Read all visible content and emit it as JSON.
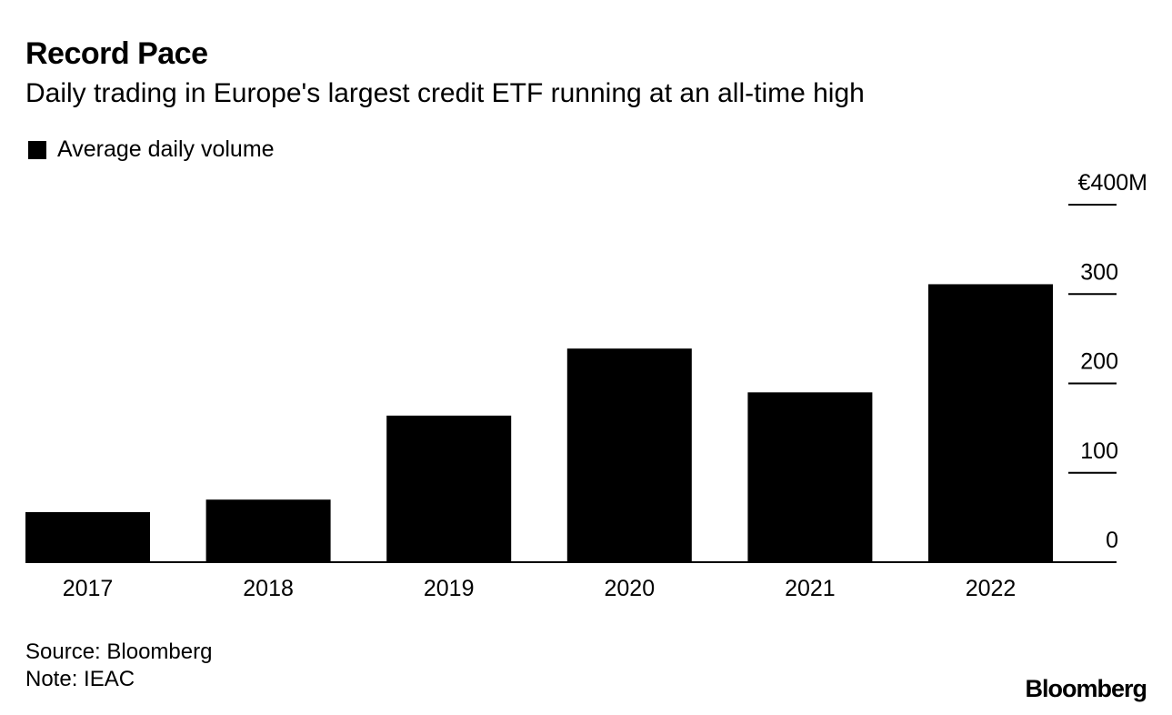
{
  "chart_data": {
    "type": "bar",
    "title": "Record Pace",
    "subtitle": "Daily trading in Europe's largest credit ETF running at an all-time high",
    "legend": [
      {
        "name": "Average daily volume",
        "color": "#000000"
      }
    ],
    "categories": [
      "2017",
      "2018",
      "2019",
      "2020",
      "2021",
      "2022"
    ],
    "series": [
      {
        "name": "Average daily volume",
        "values": [
          56,
          70,
          164,
          239,
          190,
          311
        ]
      }
    ],
    "ylim": [
      0,
      400
    ],
    "yticks": [
      0,
      100,
      200,
      300,
      400
    ],
    "ytick_labels": [
      "0",
      "100",
      "200",
      "300",
      "€400M"
    ],
    "xlabel": "",
    "ylabel": "",
    "grid": false
  },
  "footer": {
    "source": "Source: Bloomberg",
    "note": "Note: IEAC",
    "logo": "Bloomberg"
  }
}
